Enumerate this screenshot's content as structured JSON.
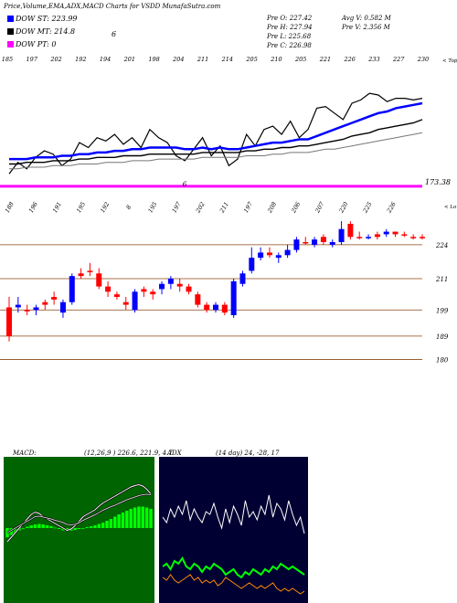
{
  "page_title": "Price,Volume,EMA,ADX,MACD Charts for VSDD MunafaSutra.com",
  "legend": {
    "st": {
      "label": "DOW ST: 223.99",
      "color": "#0000ff"
    },
    "mt": {
      "label": "DOW MT: 214.8",
      "color": "#000000"
    },
    "pt": {
      "label": "DOW PT: 0",
      "color": "#ff00ff"
    },
    "st_marker": "6"
  },
  "info": {
    "prev_open": "Pre   O: 227.42",
    "prev_high": "Pre   H: 227.94",
    "prev_low": "Pre   L: 225.68",
    "prev_close": "Pre   C: 226.98",
    "avg_volume": "Avg V: 0.582  M",
    "prev_volume": "Pre   V: 2.356  M"
  },
  "top_right_label": "< Tops",
  "lows_right_label": "< Lows",
  "chart_data": [
    {
      "type": "line",
      "panel": "ema",
      "title": "",
      "price_label": "173.38",
      "marker_label": "6",
      "tops_labels": [
        "185",
        "197",
        "202",
        "192",
        "194",
        "201",
        "198",
        "204",
        "211",
        "214",
        "205",
        "210",
        "205",
        "221",
        "226",
        "233",
        "227",
        "230"
      ],
      "series": [
        {
          "name": "",
          "color": "#000000",
          "values": [
            181,
            188,
            184,
            191,
            195,
            193,
            186,
            190,
            200,
            197,
            203,
            201,
            205,
            199,
            203,
            197,
            208,
            203,
            200,
            192,
            189,
            196,
            203,
            192,
            198,
            186,
            190,
            205,
            198,
            208,
            210,
            205,
            213,
            203,
            208,
            221,
            222,
            218,
            214,
            224,
            226,
            230,
            229,
            225,
            227,
            227,
            226,
            227
          ]
        },
        {
          "name": "",
          "color": "#0000ff",
          "values": [
            190,
            190,
            190,
            191,
            191,
            191,
            192,
            192,
            193,
            193,
            194,
            194,
            195,
            195,
            196,
            196,
            197,
            197,
            197,
            197,
            196,
            196,
            197,
            196,
            197,
            196,
            196,
            197,
            198,
            199,
            200,
            200,
            201,
            202,
            202,
            204,
            206,
            208,
            210,
            212,
            214,
            216,
            218,
            219,
            221,
            222,
            223,
            224
          ]
        },
        {
          "name": "",
          "color": "#000000",
          "values": [
            187,
            187,
            188,
            188,
            188,
            189,
            189,
            189,
            190,
            190,
            191,
            191,
            191,
            192,
            192,
            192,
            193,
            193,
            193,
            193,
            193,
            193,
            194,
            194,
            194,
            194,
            194,
            195,
            195,
            196,
            196,
            197,
            197,
            198,
            198,
            199,
            200,
            201,
            202,
            204,
            205,
            206,
            208,
            209,
            210,
            211,
            212,
            214
          ]
        },
        {
          "name": "",
          "color": "#777777",
          "values": [
            184,
            184,
            185,
            185,
            185,
            186,
            186,
            186,
            187,
            187,
            187,
            188,
            188,
            188,
            189,
            189,
            189,
            190,
            190,
            190,
            190,
            190,
            191,
            191,
            191,
            191,
            191,
            192,
            192,
            192,
            193,
            193,
            194,
            194,
            194,
            195,
            196,
            196,
            197,
            198,
            199,
            200,
            201,
            202,
            203,
            204,
            205,
            206
          ]
        }
      ],
      "dow_pt_level": 173.38
    },
    {
      "type": "candlestick",
      "panel": "price",
      "title": "",
      "lows_labels": [
        "188",
        "196",
        "191",
        "195",
        "192",
        "8",
        "195",
        "197",
        "202",
        "211",
        "197",
        "208",
        "206",
        "207",
        "220",
        "225",
        "226"
      ],
      "y_ticks": [
        224,
        211,
        199,
        189,
        180
      ],
      "ylim": [
        176,
        232
      ],
      "candles": [
        {
          "o": 200,
          "h": 204,
          "l": 187,
          "c": 189,
          "color": "red"
        },
        {
          "o": 200,
          "h": 204,
          "l": 198,
          "c": 201,
          "color": "blue"
        },
        {
          "o": 199,
          "h": 201,
          "l": 197,
          "c": 199,
          "color": "red"
        },
        {
          "o": 199,
          "h": 201,
          "l": 197,
          "c": 200,
          "color": "blue"
        },
        {
          "o": 201,
          "h": 203,
          "l": 199,
          "c": 202,
          "color": "red"
        },
        {
          "o": 204,
          "h": 206,
          "l": 201,
          "c": 203,
          "color": "red"
        },
        {
          "o": 198,
          "h": 203,
          "l": 196,
          "c": 202,
          "color": "blue"
        },
        {
          "o": 202,
          "h": 213,
          "l": 201,
          "c": 212,
          "color": "blue"
        },
        {
          "o": 213,
          "h": 215,
          "l": 211,
          "c": 212,
          "color": "red"
        },
        {
          "o": 214,
          "h": 217,
          "l": 212,
          "c": 214,
          "color": "red"
        },
        {
          "o": 213,
          "h": 215,
          "l": 207,
          "c": 208,
          "color": "red"
        },
        {
          "o": 208,
          "h": 210,
          "l": 204,
          "c": 206,
          "color": "red"
        },
        {
          "o": 205,
          "h": 206,
          "l": 203,
          "c": 204,
          "color": "red"
        },
        {
          "o": 202,
          "h": 204,
          "l": 199,
          "c": 201,
          "color": "red"
        },
        {
          "o": 199,
          "h": 207,
          "l": 198,
          "c": 206,
          "color": "blue"
        },
        {
          "o": 206,
          "h": 208,
          "l": 204,
          "c": 207,
          "color": "red"
        },
        {
          "o": 205,
          "h": 207,
          "l": 203,
          "c": 206,
          "color": "red"
        },
        {
          "o": 207,
          "h": 210,
          "l": 205,
          "c": 209,
          "color": "blue"
        },
        {
          "o": 209,
          "h": 212,
          "l": 207,
          "c": 211,
          "color": "blue"
        },
        {
          "o": 208,
          "h": 211,
          "l": 206,
          "c": 209,
          "color": "red"
        },
        {
          "o": 208,
          "h": 209,
          "l": 205,
          "c": 206,
          "color": "red"
        },
        {
          "o": 205,
          "h": 206,
          "l": 200,
          "c": 201,
          "color": "red"
        },
        {
          "o": 201,
          "h": 202,
          "l": 198,
          "c": 199,
          "color": "red"
        },
        {
          "o": 199,
          "h": 202,
          "l": 198,
          "c": 201,
          "color": "blue"
        },
        {
          "o": 201,
          "h": 202,
          "l": 197,
          "c": 198,
          "color": "red"
        },
        {
          "o": 197,
          "h": 211,
          "l": 196,
          "c": 210,
          "color": "blue"
        },
        {
          "o": 209,
          "h": 214,
          "l": 208,
          "c": 213,
          "color": "blue"
        },
        {
          "o": 214,
          "h": 223,
          "l": 213,
          "c": 219,
          "color": "blue"
        },
        {
          "o": 219,
          "h": 223,
          "l": 218,
          "c": 221,
          "color": "blue"
        },
        {
          "o": 221,
          "h": 223,
          "l": 219,
          "c": 220,
          "color": "red"
        },
        {
          "o": 219,
          "h": 221,
          "l": 217,
          "c": 220,
          "color": "blue"
        },
        {
          "o": 220,
          "h": 224,
          "l": 219,
          "c": 222,
          "color": "blue"
        },
        {
          "o": 222,
          "h": 227,
          "l": 221,
          "c": 226,
          "color": "blue"
        },
        {
          "o": 225,
          "h": 227,
          "l": 224,
          "c": 225,
          "color": "red"
        },
        {
          "o": 224,
          "h": 227,
          "l": 223,
          "c": 226,
          "color": "blue"
        },
        {
          "o": 227,
          "h": 228,
          "l": 224,
          "c": 225,
          "color": "red"
        },
        {
          "o": 224,
          "h": 226,
          "l": 223,
          "c": 225,
          "color": "blue"
        },
        {
          "o": 225,
          "h": 233,
          "l": 224,
          "c": 230,
          "color": "blue"
        },
        {
          "o": 232,
          "h": 233,
          "l": 226,
          "c": 227,
          "color": "red"
        },
        {
          "o": 227,
          "h": 229,
          "l": 226,
          "c": 227,
          "color": "red"
        },
        {
          "o": 227,
          "h": 228,
          "l": 226,
          "c": 227,
          "color": "blue"
        },
        {
          "o": 227,
          "h": 229,
          "l": 226,
          "c": 228,
          "color": "red"
        },
        {
          "o": 228,
          "h": 230,
          "l": 227,
          "c": 229,
          "color": "blue"
        },
        {
          "o": 229,
          "h": 229,
          "l": 227,
          "c": 228,
          "color": "red"
        },
        {
          "o": 228,
          "h": 229,
          "l": 227,
          "c": 228,
          "color": "red"
        },
        {
          "o": 227,
          "h": 228,
          "l": 226,
          "c": 227,
          "color": "red"
        },
        {
          "o": 227,
          "h": 228,
          "l": 226,
          "c": 227,
          "color": "red"
        }
      ]
    },
    {
      "type": "area",
      "panel": "macd",
      "title": "MACD:",
      "subtitle": "(12,26,9 ) 226.6, 221.9, 4.7",
      "background": "#006400",
      "histogram_color": "#00ff00",
      "histogram": [
        -2,
        -1.5,
        -1,
        -0.5,
        0,
        0.3,
        0.6,
        0.8,
        0.9,
        0.8,
        0.6,
        0.4,
        0.1,
        -0.2,
        -0.5,
        -0.7,
        -0.6,
        -0.4,
        -0.2,
        0,
        0.2,
        0.4,
        0.6,
        0.9,
        1.2,
        1.6,
        2.0,
        2.5,
        3.0,
        3.4,
        3.8,
        4.2,
        4.5,
        4.7,
        4.7,
        4.5,
        4.2
      ],
      "series": [
        {
          "name": "",
          "color": "#ffffff",
          "values": [
            -3,
            -2,
            -1,
            0,
            1,
            2,
            3,
            3.5,
            3.2,
            2.5,
            2,
            1.5,
            1,
            0.5,
            0,
            -0.5,
            -0.2,
            0.5,
            1.5,
            2.5,
            3,
            3.5,
            4,
            4.8,
            5.5,
            6,
            6.5,
            7,
            7.5,
            8,
            8.5,
            9,
            9.3,
            9.5,
            9.2,
            8.5,
            7.5
          ]
        },
        {
          "name": "",
          "color": "#cccccc",
          "values": [
            -1,
            -0.5,
            0,
            0.5,
            1,
            1.5,
            2,
            2.5,
            2.6,
            2.4,
            2.2,
            2,
            1.7,
            1.5,
            1.2,
            0.8,
            0.7,
            0.8,
            1.2,
            1.7,
            2.1,
            2.5,
            2.9,
            3.4,
            3.9,
            4.3,
            4.7,
            5,
            5.4,
            5.8,
            6.2,
            6.5,
            6.8,
            7.1,
            7.3,
            7.4,
            7.3
          ]
        }
      ]
    },
    {
      "type": "line",
      "panel": "adx",
      "title": "ADX",
      "subtitle": "(14 day) 24, -28, 17",
      "background": "#000033",
      "series": [
        {
          "name": "",
          "color": "#ffffff",
          "values": [
            30,
            28,
            33,
            30,
            34,
            31,
            36,
            29,
            33,
            30,
            28,
            32,
            31,
            35,
            30,
            26,
            33,
            28,
            34,
            31,
            27,
            36,
            30,
            32,
            29,
            34,
            31,
            38,
            30,
            35,
            33,
            29,
            36,
            31,
            27,
            30,
            24
          ]
        },
        {
          "name": "",
          "color": "#00ff00",
          "values": [
            12,
            13,
            11,
            14,
            13,
            15,
            12,
            11,
            13,
            12,
            10,
            12,
            11,
            13,
            12,
            11,
            9,
            10,
            11,
            9,
            8,
            10,
            9,
            11,
            10,
            9,
            11,
            10,
            12,
            11,
            13,
            12,
            11,
            12,
            11,
            10,
            9
          ]
        },
        {
          "name": "",
          "color": "#ff8c00",
          "values": [
            8,
            7,
            9,
            7,
            6,
            7,
            8,
            9,
            7,
            8,
            6,
            7,
            6,
            7,
            5,
            6,
            8,
            7,
            6,
            5,
            4,
            5,
            6,
            5,
            4,
            5,
            4,
            5,
            6,
            4,
            3,
            4,
            3,
            4,
            3,
            2,
            3
          ]
        }
      ]
    }
  ]
}
